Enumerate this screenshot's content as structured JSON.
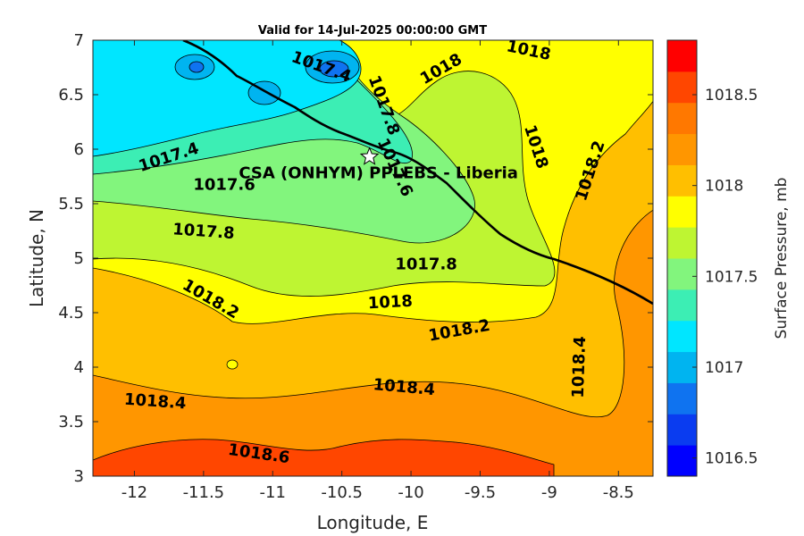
{
  "chart_data": {
    "type": "contour-map",
    "title": "Valid for 14-Jul-2025 00:00:00 GMT",
    "xlabel": "Longitude, E",
    "ylabel": "Latitude, N",
    "xlim": [
      -12.3,
      -8.25
    ],
    "ylim": [
      3,
      7
    ],
    "xticks": [
      -12,
      -11.5,
      -11,
      -10.5,
      -10,
      -9.5,
      -9,
      -8.5
    ],
    "yticks": [
      3,
      3.5,
      4,
      4.5,
      5,
      5.5,
      6,
      6.5,
      7
    ],
    "colorbar": {
      "label": "Surface Pressure, mb",
      "range": [
        1016.4,
        1018.8
      ],
      "ticks": [
        1016.5,
        1017,
        1017.5,
        1018,
        1018.5
      ],
      "colors": [
        "#0000ff",
        "#0a3cf0",
        "#0f73f0",
        "#00b4f0",
        "#00e6ff",
        "#3ceeb4",
        "#82f57d",
        "#bef532",
        "#ffff00",
        "#ffbf00",
        "#ff9600",
        "#ff7800",
        "#ff4600",
        "#ff0000"
      ]
    },
    "levels": [
      1016.4,
      1016.6,
      1016.8,
      1017.0,
      1017.2,
      1017.4,
      1017.6,
      1017.8,
      1018.0,
      1018.2,
      1018.4,
      1018.6,
      1018.8
    ],
    "contour_labels": [
      {
        "text": "1017.4",
        "lon": -11.75,
        "lat": 5.92,
        "angle": -18
      },
      {
        "text": "1017.6",
        "lon": -11.35,
        "lat": 5.67,
        "angle": 0
      },
      {
        "text": "1017.8",
        "lon": -11.5,
        "lat": 5.24,
        "angle": 4
      },
      {
        "text": "1017.8",
        "lon": -9.89,
        "lat": 4.94,
        "angle": 0
      },
      {
        "text": "1017.4",
        "lon": -10.65,
        "lat": 6.75,
        "angle": 20
      },
      {
        "text": "1017.8",
        "lon": -10.2,
        "lat": 6.4,
        "angle": 70
      },
      {
        "text": "1017.6",
        "lon": -10.12,
        "lat": 5.83,
        "angle": 65
      },
      {
        "text": "1018",
        "lon": -9.78,
        "lat": 6.73,
        "angle": -30
      },
      {
        "text": "1018",
        "lon": -9.15,
        "lat": 6.9,
        "angle": 12
      },
      {
        "text": "1018",
        "lon": -9.1,
        "lat": 6.02,
        "angle": 72
      },
      {
        "text": "1018.2",
        "lon": -8.7,
        "lat": 5.8,
        "angle": -72
      },
      {
        "text": "1018.2",
        "lon": -11.45,
        "lat": 4.62,
        "angle": 30
      },
      {
        "text": "1018",
        "lon": -10.15,
        "lat": 4.59,
        "angle": -3
      },
      {
        "text": "1018.2",
        "lon": -9.65,
        "lat": 4.33,
        "angle": -10
      },
      {
        "text": "1018.4",
        "lon": -11.85,
        "lat": 3.68,
        "angle": 4
      },
      {
        "text": "1018.4",
        "lon": -10.05,
        "lat": 3.81,
        "angle": 5
      },
      {
        "text": "1018.4",
        "lon": -8.78,
        "lat": 4.0,
        "angle": -88
      },
      {
        "text": "1018.6",
        "lon": -11.1,
        "lat": 3.2,
        "angle": 8
      }
    ],
    "site": {
      "label": "CSA (ONHYM) PPLEBS  - Liberia",
      "lon": -10.3,
      "lat": 5.93,
      "marker": "star"
    },
    "grid": false
  }
}
